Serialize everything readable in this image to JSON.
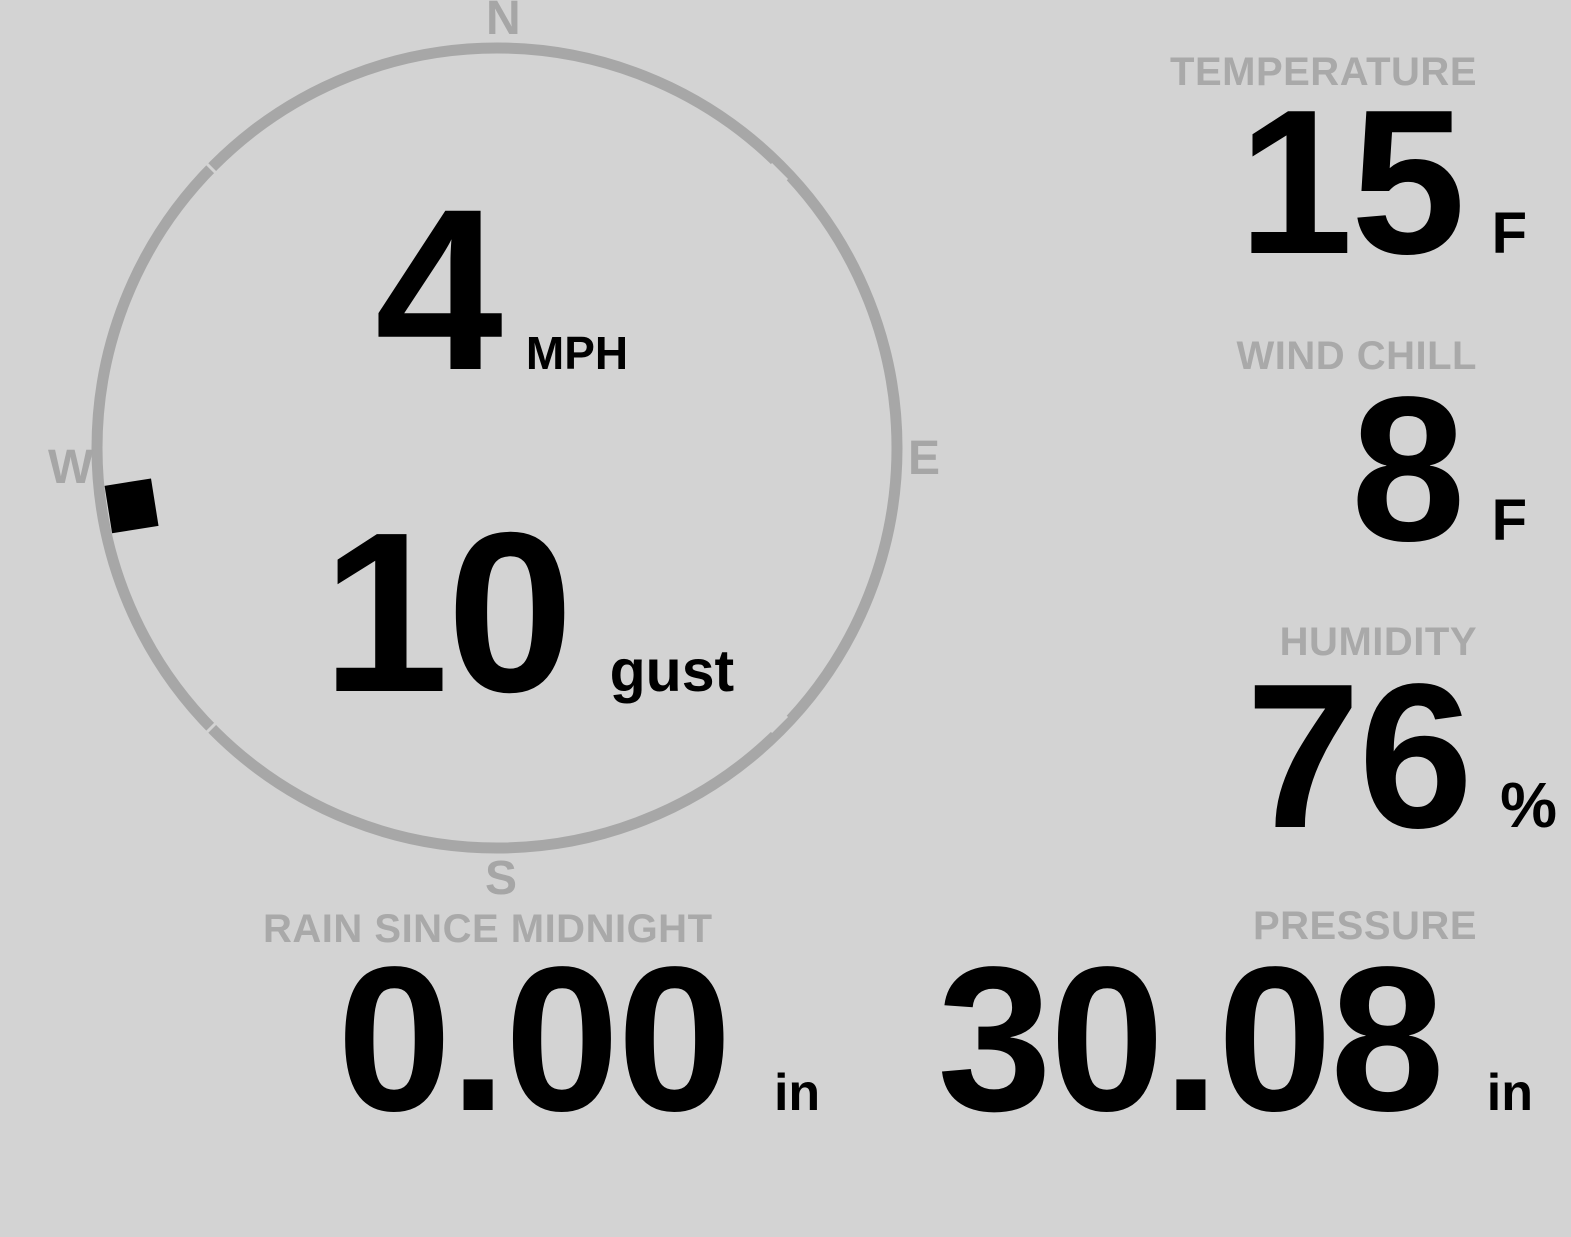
{
  "colors": {
    "background": "#d3d3d3",
    "label": "#a9a9a9",
    "dial": "#a7a7a7",
    "value": "#000000"
  },
  "wind": {
    "speed": "4",
    "speed_unit": "MPH",
    "gust": "10",
    "gust_unit": "gust",
    "direction_deg": 261,
    "compass": {
      "north": "N",
      "east": "E",
      "south": "S",
      "west": "W"
    }
  },
  "metrics": {
    "temperature": {
      "label": "TEMPERATURE",
      "value": "15",
      "unit": "F"
    },
    "wind_chill": {
      "label": "WIND CHILL",
      "value": "8",
      "unit": "F"
    },
    "humidity": {
      "label": "HUMIDITY",
      "value": "76",
      "unit": "%"
    },
    "rain_since_midnight": {
      "label": "RAIN SINCE MIDNIGHT",
      "value": "0.00",
      "unit": "in"
    },
    "pressure": {
      "label": "PRESSURE",
      "value": "30.08",
      "unit": "in"
    }
  }
}
